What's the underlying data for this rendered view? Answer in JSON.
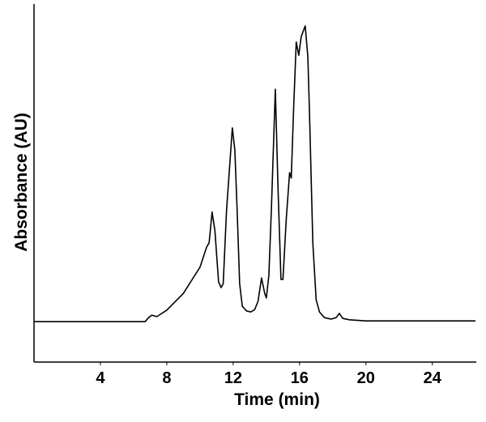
{
  "chart_data": {
    "type": "line",
    "x_label": "Time (min)",
    "y_label": "Absorbance (AU)",
    "x": [
      0,
      6.7,
      6.9,
      7.1,
      7.4,
      8,
      9,
      10,
      10.4,
      10.55,
      10.73,
      10.9,
      11.12,
      11.27,
      11.4,
      11.6,
      11.95,
      12.1,
      12.24,
      12.39,
      12.55,
      12.8,
      13.07,
      13.3,
      13.5,
      13.71,
      13.9,
      14.0,
      14.15,
      14.3,
      14.54,
      14.7,
      14.88,
      15.0,
      15.2,
      15.4,
      15.5,
      15.65,
      15.8,
      15.95,
      16.1,
      16.34,
      16.5,
      16.6,
      16.8,
      17.0,
      17.2,
      17.5,
      17.9,
      18.2,
      18.4,
      18.6,
      19,
      20,
      26.6
    ],
    "series": [
      {
        "color": "#000000",
        "values": [
          11.3,
          11.3,
          12.4,
          13.1,
          12.7,
          14.5,
          19.2,
          26.5,
          32.1,
          33.3,
          41.9,
          36.7,
          22.4,
          20.8,
          21.9,
          42.3,
          65.4,
          59.3,
          42.3,
          21.9,
          15.6,
          14.3,
          14.0,
          14.7,
          17.0,
          23.5,
          19.2,
          17.9,
          24.2,
          42.3,
          76.2,
          49.1,
          23.1,
          23.1,
          40.0,
          52.9,
          51.4,
          71.7,
          89.4,
          85.7,
          90.9,
          93.9,
          85.3,
          69.5,
          33.3,
          17.4,
          14.0,
          12.4,
          12.0,
          12.4,
          13.6,
          12.2,
          11.8,
          11.5,
          11.5
        ]
      }
    ],
    "xlim": [
      0,
      26.6
    ],
    "ylim": [
      0,
      100
    ],
    "xticks": [
      4,
      8,
      12,
      16,
      20,
      24
    ]
  }
}
